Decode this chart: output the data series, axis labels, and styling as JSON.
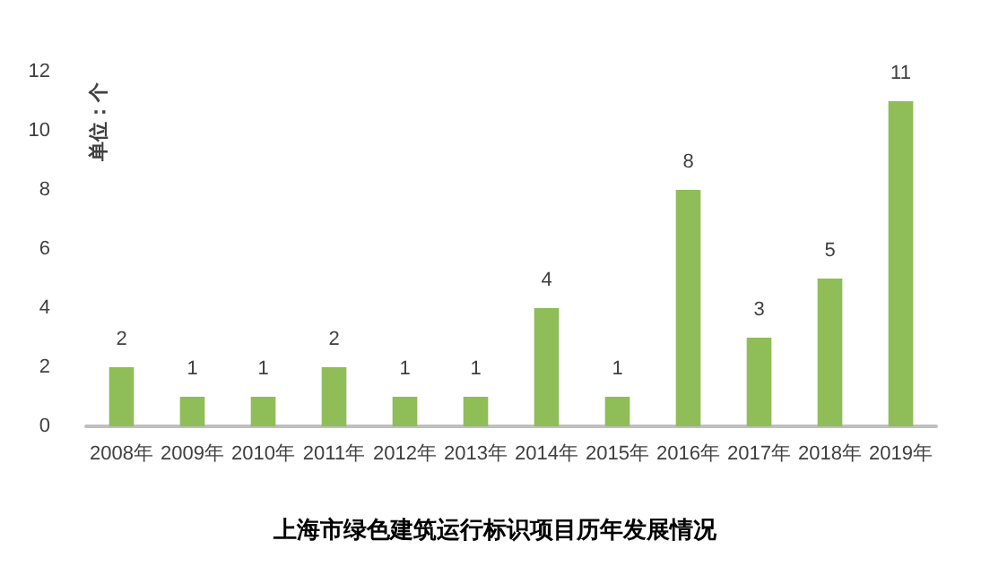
{
  "chart_data": {
    "type": "bar",
    "title": "上海市绿色建筑运行标识项目历年发展情况",
    "ylabel": "单位：个",
    "categories": [
      "2008年",
      "2009年",
      "2010年",
      "2011年",
      "2012年",
      "2013年",
      "2014年",
      "2015年",
      "2016年",
      "2017年",
      "2018年",
      "2019年"
    ],
    "values": [
      2,
      1,
      1,
      2,
      1,
      1,
      4,
      1,
      8,
      3,
      5,
      11
    ],
    "color": "#8fbd58",
    "ylim": [
      0,
      12
    ],
    "yticks": [
      0,
      2,
      4,
      6,
      8,
      10,
      12
    ],
    "grid": false,
    "data_labels": true
  }
}
